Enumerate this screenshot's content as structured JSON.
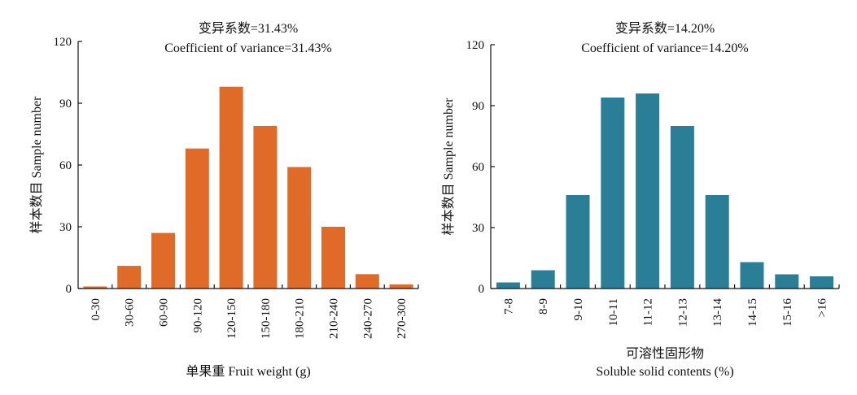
{
  "chart_data": [
    {
      "type": "bar",
      "title_cn": "变异系数=31.43%",
      "title_en": "Coefficient of variance=31.43%",
      "categories": [
        "0-30",
        "30-60",
        "60-90",
        "90-120",
        "120-150",
        "150-180",
        "180-210",
        "210-240",
        "240-270",
        "270-300"
      ],
      "values": [
        1,
        11,
        27,
        68,
        98,
        79,
        59,
        30,
        7,
        2
      ],
      "ylabel": "样本数目 Sample number",
      "xlabel": "单果重 Fruit weight (g)",
      "ylim": [
        0,
        120
      ],
      "yticks": [
        0,
        30,
        60,
        90,
        120
      ],
      "color": "#E06A28"
    },
    {
      "type": "bar",
      "title_cn": "变异系数=14.20%",
      "title_en": "Coefficient of variance=14.20%",
      "categories": [
        "7-8",
        "8-9",
        "9-10",
        "10-11",
        "11-12",
        "12-13",
        "13-14",
        "14-15",
        "15-16",
        ">16"
      ],
      "values": [
        3,
        9,
        46,
        94,
        96,
        80,
        46,
        13,
        7,
        6
      ],
      "ylabel": "样本数目 Sample number",
      "xlabel_cn": "可溶性固形物",
      "xlabel": "Soluble solid contents (%)",
      "ylim": [
        0,
        120
      ],
      "yticks": [
        0,
        30,
        60,
        90,
        120
      ],
      "color": "#2A7F97"
    }
  ]
}
